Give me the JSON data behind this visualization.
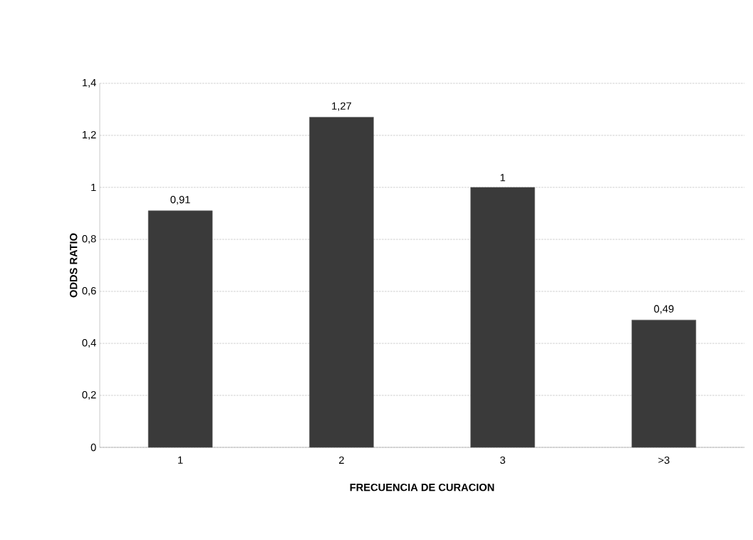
{
  "chart_data": {
    "type": "bar",
    "xlabel": "FRECUENCIA DE CURACION",
    "ylabel": "ODDS RATIO",
    "categories": [
      "1",
      "2",
      "3",
      ">3"
    ],
    "values": [
      0.91,
      1.27,
      1,
      0.49
    ],
    "value_labels": [
      "0,91",
      "1,27",
      "1",
      "0,49"
    ],
    "color": "#3a3a3a",
    "ylim": [
      0,
      1.4
    ],
    "yticks": [
      0,
      {
        "value": 0.2,
        "label": "0,2"
      },
      {
        "value": 0.4,
        "label": "0,4"
      },
      {
        "value": 0.6,
        "label": "0,6"
      },
      {
        "value": 0.8,
        "label": "0,8"
      },
      1,
      {
        "value": 1.2,
        "label": "1,2"
      },
      {
        "value": 1.4,
        "label": "1,4"
      }
    ],
    "grid": "y"
  }
}
